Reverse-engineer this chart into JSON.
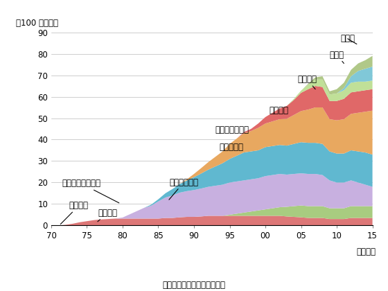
{
  "years": [
    1970,
    1971,
    1972,
    1973,
    1974,
    1975,
    1976,
    1977,
    1978,
    1979,
    1980,
    1981,
    1982,
    1983,
    1984,
    1985,
    1986,
    1987,
    1988,
    1989,
    1990,
    1991,
    1992,
    1993,
    1994,
    1995,
    1996,
    1997,
    1998,
    1999,
    2000,
    2001,
    2002,
    2003,
    2004,
    2005,
    2006,
    2007,
    2008,
    2009,
    2010,
    2011,
    2012,
    2013,
    2014,
    2015
  ],
  "series": {
    "america": [
      0,
      0,
      0,
      0,
      0,
      0,
      0,
      0,
      0,
      0,
      0,
      0,
      0,
      0,
      0,
      0,
      0,
      0,
      0,
      0,
      0,
      0,
      0,
      0,
      0,
      0,
      0,
      0,
      0,
      0,
      0,
      0,
      0,
      0,
      0,
      0,
      0,
      0,
      0,
      0,
      0,
      0,
      0,
      0,
      0,
      0
    ],
    "brunei": [
      0,
      0,
      0.3,
      0.8,
      1.5,
      2.0,
      2.5,
      2.8,
      3.0,
      3.2,
      3.2,
      3.2,
      3.2,
      3.2,
      3.2,
      3.2,
      3.5,
      3.5,
      3.8,
      4.0,
      4.0,
      4.2,
      4.5,
      4.5,
      4.5,
      4.5,
      4.5,
      4.5,
      4.5,
      4.5,
      4.5,
      4.5,
      4.5,
      4.2,
      4.0,
      3.8,
      3.5,
      3.5,
      3.5,
      3.0,
      3.0,
      3.0,
      3.5,
      3.5,
      3.5,
      3.5
    ],
    "uae": [
      0,
      0,
      0,
      0,
      0,
      0,
      0,
      0,
      0,
      0,
      0,
      0,
      0,
      0,
      0,
      0,
      0,
      0,
      0,
      0,
      0,
      0,
      0,
      0,
      0,
      0.5,
      1.0,
      1.5,
      2.0,
      2.5,
      3.0,
      3.5,
      4.0,
      4.5,
      5.0,
      5.5,
      5.5,
      5.5,
      5.5,
      5.0,
      5.0,
      5.0,
      5.5,
      5.5,
      5.5,
      5.5
    ],
    "indonesia": [
      0,
      0,
      0,
      0,
      0,
      0,
      0,
      0,
      0,
      0,
      0.5,
      2.0,
      3.5,
      5.0,
      6.0,
      8.0,
      9.5,
      10.5,
      11.5,
      12.0,
      12.5,
      13.0,
      13.5,
      14.0,
      14.5,
      15.0,
      15.0,
      15.0,
      15.0,
      15.0,
      15.5,
      15.5,
      15.5,
      15.0,
      15.0,
      15.0,
      15.0,
      15.0,
      14.5,
      13.0,
      12.0,
      12.0,
      12.0,
      11.0,
      10.0,
      9.0
    ],
    "malaysia": [
      0,
      0,
      0,
      0,
      0,
      0,
      0,
      0,
      0,
      0,
      0,
      0,
      0,
      0,
      0.5,
      1.0,
      2.0,
      3.0,
      4.0,
      5.0,
      6.0,
      7.0,
      8.0,
      9.0,
      10.0,
      11.0,
      12.0,
      13.0,
      13.0,
      13.0,
      13.5,
      13.5,
      13.5,
      13.5,
      14.0,
      14.5,
      14.5,
      14.5,
      14.5,
      13.5,
      13.5,
      13.5,
      14.0,
      14.5,
      15.0,
      15.0
    ],
    "australia": [
      0,
      0,
      0,
      0,
      0,
      0,
      0,
      0,
      0,
      0,
      0,
      0,
      0,
      0,
      0,
      0,
      0,
      0,
      0,
      0.5,
      1.5,
      2.5,
      3.5,
      4.5,
      5.5,
      7.0,
      8.0,
      9.0,
      9.5,
      10.5,
      11.0,
      11.5,
      12.0,
      12.5,
      13.5,
      14.5,
      15.5,
      16.5,
      17.0,
      15.0,
      15.5,
      16.0,
      17.0,
      18.0,
      19.0,
      20.5
    ],
    "qatar": [
      0,
      0,
      0,
      0,
      0,
      0,
      0,
      0,
      0,
      0,
      0,
      0,
      0,
      0,
      0,
      0,
      0,
      0,
      0,
      0,
      0,
      0,
      0,
      0,
      0,
      0,
      0,
      0.5,
      1.0,
      2.0,
      3.0,
      4.0,
      5.0,
      6.0,
      7.0,
      8.5,
      9.5,
      10.0,
      9.5,
      8.5,
      9.0,
      9.5,
      10.0,
      10.0,
      10.0,
      10.0
    ],
    "oman": [
      0,
      0,
      0,
      0,
      0,
      0,
      0,
      0,
      0,
      0,
      0,
      0,
      0,
      0,
      0,
      0,
      0,
      0,
      0,
      0,
      0,
      0,
      0,
      0,
      0,
      0,
      0,
      0,
      0,
      0,
      0,
      0,
      0,
      0,
      0.5,
      1.0,
      2.0,
      3.0,
      3.5,
      3.0,
      3.5,
      4.0,
      4.5,
      4.5,
      4.0,
      4.0
    ],
    "russia": [
      0,
      0,
      0,
      0,
      0,
      0,
      0,
      0,
      0,
      0,
      0,
      0,
      0,
      0,
      0,
      0,
      0,
      0,
      0,
      0,
      0,
      0,
      0,
      0,
      0,
      0,
      0,
      0,
      0,
      0,
      0,
      0,
      0,
      0,
      0,
      0,
      0,
      0,
      0,
      0,
      0,
      1.0,
      3.0,
      5.0,
      6.0,
      6.5
    ],
    "other": [
      0,
      0,
      0,
      0,
      0,
      0,
      0,
      0,
      0,
      0,
      0,
      0,
      0,
      0,
      0,
      0,
      0,
      0,
      0,
      0,
      0,
      0,
      0,
      0,
      0,
      0,
      0,
      0,
      0,
      0,
      0,
      0,
      0,
      0,
      0,
      0,
      0.5,
      1.0,
      1.5,
      1.5,
      2.0,
      2.5,
      3.0,
      3.5,
      4.0,
      5.0
    ]
  },
  "colors": {
    "america": "#aaaacc",
    "brunei": "#dd7777",
    "uae": "#a8cc80",
    "indonesia": "#c8b0e0",
    "malaysia": "#60b8d0",
    "australia": "#e8a860",
    "qatar": "#e06868",
    "oman": "#c0e098",
    "russia": "#80c8d8",
    "other": "#b0c888"
  },
  "labels": {
    "america": "アメリカ",
    "brunei": "ブルネイ",
    "uae": "アラブ首長国連邦",
    "indonesia": "インドネシア",
    "malaysia": "マレーシア",
    "australia": "オーストラリア",
    "qatar": "カタール",
    "oman": "オマーン",
    "russia": "ロシア",
    "other": "その他"
  },
  "ylabel": "（100 万トン）",
  "xlabel": "（年度）",
  "source": "財務省「日本貸易統計」より",
  "xticklabels": [
    "70",
    "75",
    "80",
    "85",
    "90",
    "95",
    "00",
    "05",
    "10",
    "15"
  ],
  "yticks": [
    0,
    10,
    20,
    30,
    40,
    50,
    60,
    70,
    80,
    90
  ]
}
